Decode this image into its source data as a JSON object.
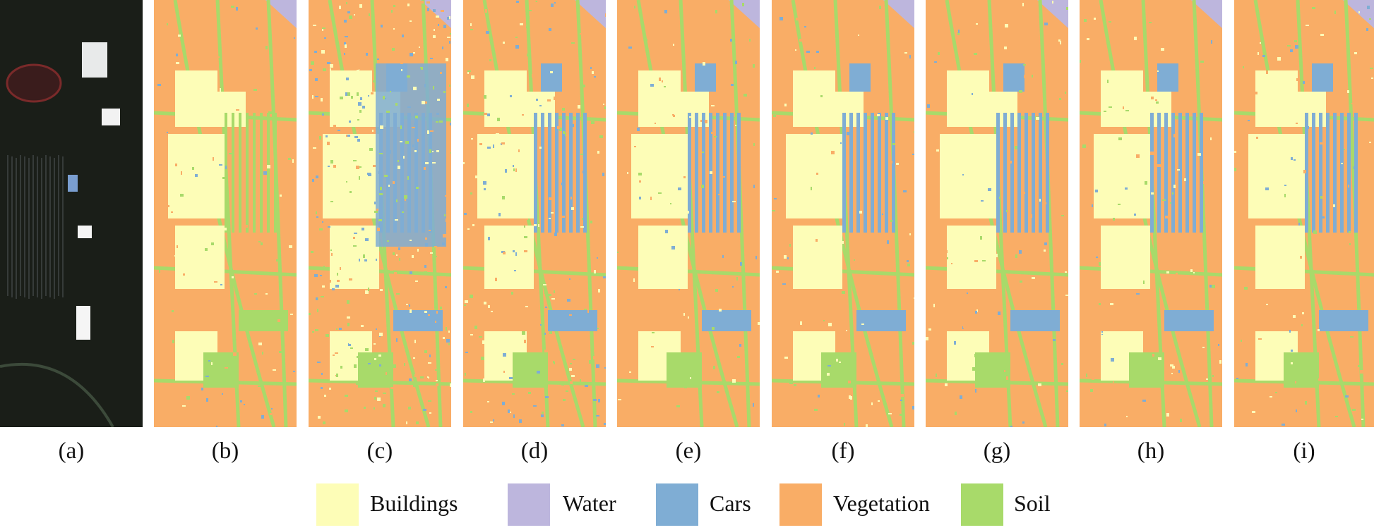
{
  "colors": {
    "buildings": "#fdfdb7",
    "water": "#bdb6dd",
    "cars": "#7fadd4",
    "vegetation": "#f9ad66",
    "soil": "#a8da6a",
    "rgb_background": "#1a1e18"
  },
  "panels": [
    {
      "id": "a",
      "label": "(a)",
      "kind": "rgb"
    },
    {
      "id": "b",
      "label": "(b)",
      "kind": "map"
    },
    {
      "id": "c",
      "label": "(c)",
      "kind": "map"
    },
    {
      "id": "d",
      "label": "(d)",
      "kind": "map"
    },
    {
      "id": "e",
      "label": "(e)",
      "kind": "map"
    },
    {
      "id": "f",
      "label": "(f)",
      "kind": "map"
    },
    {
      "id": "g",
      "label": "(g)",
      "kind": "map"
    },
    {
      "id": "h",
      "label": "(h)",
      "kind": "map"
    },
    {
      "id": "i",
      "label": "(i)",
      "kind": "map"
    }
  ],
  "legend": [
    {
      "label": "Buildings",
      "color": "#fdfdb7"
    },
    {
      "label": "Water",
      "color": "#bdb6dd"
    },
    {
      "label": "Cars",
      "color": "#7fadd4"
    },
    {
      "label": "Vegetation",
      "color": "#f9ad66"
    },
    {
      "label": "Soil",
      "color": "#a8da6a"
    }
  ]
}
